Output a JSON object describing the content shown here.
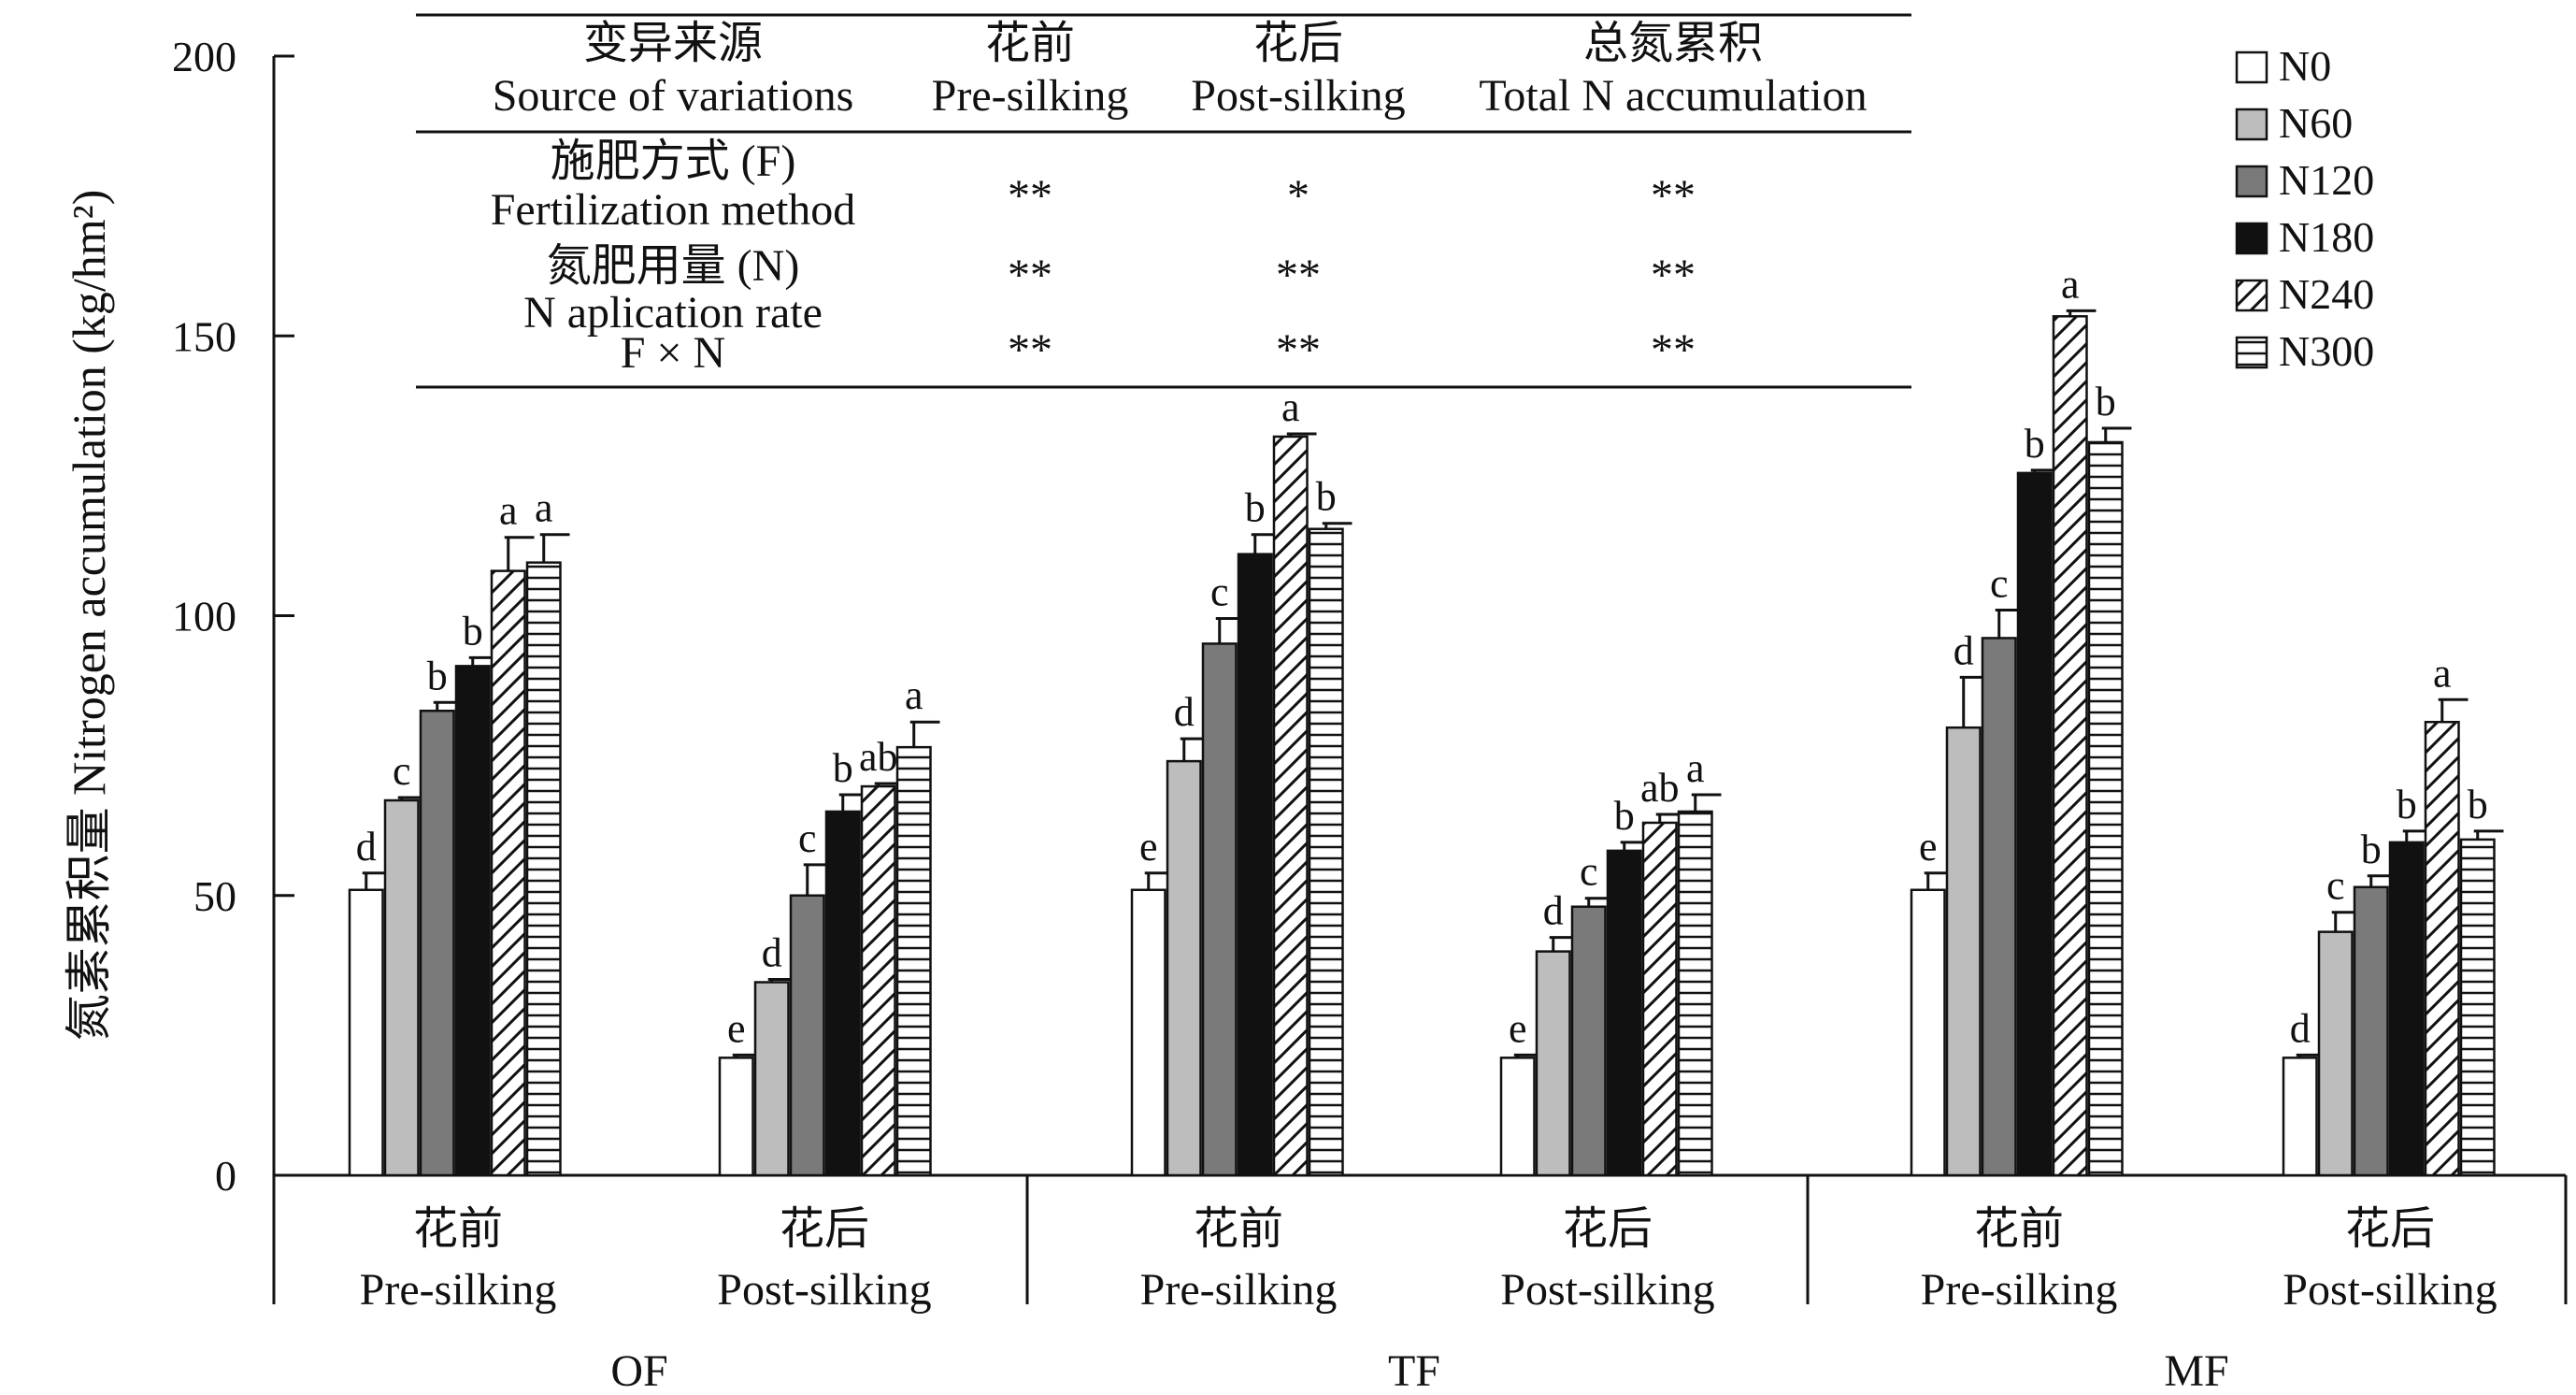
{
  "chart_data": {
    "type": "bar",
    "ylabel": "氮素累积量 Nitrogen accumulation (kg/hm²)",
    "ylim": [
      0,
      200
    ],
    "yticks": [
      0,
      50,
      100,
      150,
      200
    ],
    "grid": false,
    "legend_position": "top-right",
    "colors": {
      "N0": "#ffffff",
      "N60": "#bdbdbd",
      "N120": "#7a7a7a",
      "N180": "#111111",
      "N240": "#ffffff",
      "N300": "#ffffff"
    },
    "patterns": {
      "N0": "solid",
      "N60": "solid",
      "N120": "solid",
      "N180": "solid",
      "N240": "diagonal-hatch",
      "N300": "horizontal-hatch"
    },
    "series": [
      {
        "name": "N0",
        "values": [
          51,
          21,
          51,
          21,
          51,
          21
        ],
        "errors": [
          3,
          0.5,
          3,
          0.5,
          3,
          0.5
        ],
        "letters": [
          "d",
          "e",
          "e",
          "e",
          "e",
          "d"
        ]
      },
      {
        "name": "N60",
        "values": [
          67,
          34.5,
          74,
          40,
          80,
          43.5
        ],
        "errors": [
          0.5,
          0.5,
          4,
          2.5,
          9,
          3.5
        ],
        "letters": [
          "c",
          "d",
          "d",
          "d",
          "d",
          "c"
        ]
      },
      {
        "name": "N120",
        "values": [
          83,
          50,
          95,
          48,
          96,
          51.5
        ],
        "errors": [
          1.5,
          5.5,
          4.5,
          1.5,
          5,
          2
        ],
        "letters": [
          "b",
          "c",
          "c",
          "c",
          "c",
          "b"
        ]
      },
      {
        "name": "N180",
        "values": [
          91,
          65,
          111,
          58,
          125.5,
          59.5
        ],
        "errors": [
          1.5,
          3,
          3.5,
          1.5,
          0.5,
          2
        ],
        "letters": [
          "b",
          "b",
          "b",
          "b",
          "b",
          "b"
        ]
      },
      {
        "name": "N240",
        "values": [
          108,
          69.5,
          132,
          63,
          153.5,
          81
        ],
        "errors": [
          6,
          0.5,
          0.5,
          1.5,
          1,
          4
        ],
        "letters": [
          "a",
          "ab",
          "a",
          "ab",
          "a",
          "a"
        ]
      },
      {
        "name": "N300",
        "values": [
          109.5,
          76.5,
          115.5,
          65,
          131,
          60
        ],
        "errors": [
          5,
          4.5,
          1,
          3,
          2.5,
          1.5
        ],
        "letters": [
          "a",
          "a",
          "b",
          "a",
          "b",
          "b"
        ]
      }
    ],
    "categories": [
      {
        "zh": "花前",
        "en": "Pre-silking"
      },
      {
        "zh": "花后",
        "en": "Post-silking"
      },
      {
        "zh": "花前",
        "en": "Pre-silking"
      },
      {
        "zh": "花后",
        "en": "Post-silking"
      },
      {
        "zh": "花前",
        "en": "Pre-silking"
      },
      {
        "zh": "花后",
        "en": "Post-silking"
      }
    ],
    "groups": [
      "OF",
      "TF",
      "MF"
    ],
    "anova_table": {
      "headers": [
        {
          "zh": "变异来源",
          "en": "Source of variations"
        },
        {
          "zh": "花前",
          "en": "Pre-silking"
        },
        {
          "zh": "花后",
          "en": "Post-silking"
        },
        {
          "zh": "总氮累积",
          "en": "Total N accumulation"
        }
      ],
      "rows": [
        {
          "label1": "施肥方式 (F)",
          "label2": "Fertilization method",
          "values": [
            "**",
            "*",
            "**"
          ]
        },
        {
          "label1": "氮肥用量 (N)",
          "label2": "N aplication rate",
          "values": [
            "**",
            "**",
            "**"
          ]
        },
        {
          "label1": "F × N",
          "label2": "",
          "values": [
            "**",
            "**",
            "**"
          ]
        }
      ]
    }
  }
}
